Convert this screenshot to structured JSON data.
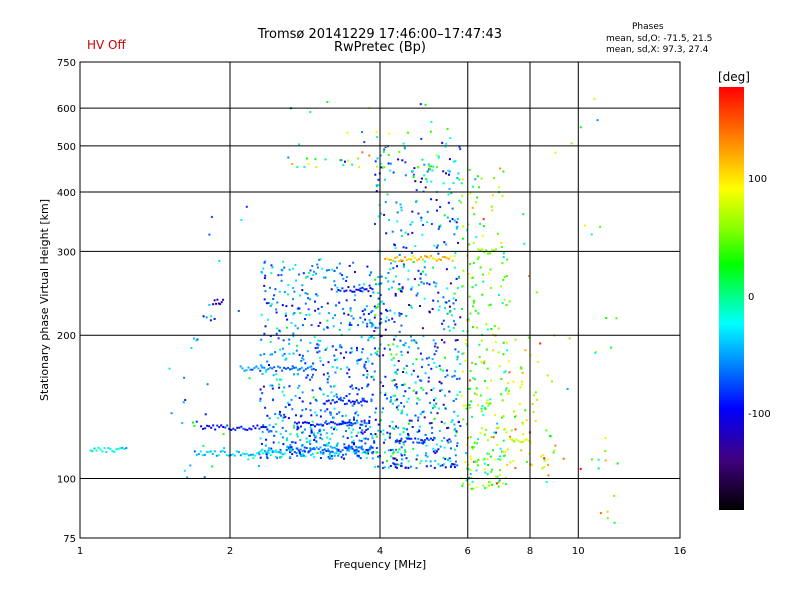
{
  "header": {
    "title_line1": "Tromsø 20141229 17:46:00–17:47:43",
    "title_line2": "RwPretec (Bp)",
    "status": "HV Off",
    "phases_label": "Phases",
    "phases_o": "mean, sd,O: -71.5, 21.5",
    "phases_x": "mean, sd,X: 97.3, 27.4"
  },
  "colorbar": {
    "label": "[deg]",
    "ticks": [
      {
        "value": 100,
        "label": "100"
      },
      {
        "value": 0,
        "label": "0"
      },
      {
        "value": -100,
        "label": "-100"
      }
    ],
    "range": [
      -180,
      180
    ]
  },
  "chart_data": {
    "type": "scatter",
    "xlabel": "Frequency [MHz]",
    "ylabel": "Stationary phase Virtual Height [km]",
    "xscale": "log",
    "yscale": "log",
    "xlim": [
      1,
      16
    ],
    "ylim": [
      75,
      750
    ],
    "xticks": [
      1,
      2,
      4,
      6,
      8,
      10,
      16
    ],
    "yticks": [
      75,
      100,
      200,
      300,
      400,
      500,
      600,
      750
    ],
    "grid_x": [
      2,
      4,
      6,
      8,
      10
    ],
    "grid_y": [
      100,
      200,
      300,
      400,
      500,
      600
    ],
    "color_encoding": "phase [deg]",
    "traces": [
      {
        "f_start": 1.05,
        "f_end": 1.25,
        "h": 115,
        "phase": -30
      },
      {
        "f_start": 1.7,
        "f_end": 2.6,
        "h": 113,
        "phase": -40
      },
      {
        "f_start": 2.6,
        "f_end": 3.9,
        "h": 115,
        "phase": -70
      },
      {
        "f_start": 1.75,
        "f_end": 2.4,
        "h": 128,
        "phase": -95
      },
      {
        "f_start": 2.7,
        "f_end": 3.6,
        "h": 130,
        "phase": -85
      },
      {
        "f_start": 3.1,
        "f_end": 3.8,
        "h": 145,
        "phase": -90
      },
      {
        "f_start": 2.1,
        "f_end": 3.0,
        "h": 170,
        "phase": -60
      },
      {
        "f_start": 3.3,
        "f_end": 3.9,
        "h": 250,
        "phase": -95
      },
      {
        "f_start": 4.1,
        "f_end": 5.7,
        "h": 290,
        "phase": 120
      },
      {
        "f_start": 1.85,
        "f_end": 1.95,
        "h": 235,
        "phase": -110
      },
      {
        "f_start": 6.3,
        "f_end": 6.9,
        "h": 300,
        "phase": 60
      },
      {
        "f_start": 7.3,
        "f_end": 8.1,
        "h": 120,
        "phase": 80
      },
      {
        "f_start": 4.3,
        "f_end": 5.2,
        "h": 120,
        "phase": -80
      }
    ],
    "clusters": [
      {
        "f": [
          2.3,
          3.9
        ],
        "h": [
          110,
          290
        ],
        "n": 700,
        "phase": -60,
        "spread": 45
      },
      {
        "f": [
          3.9,
          5.8
        ],
        "h": [
          105,
          520
        ],
        "n": 650,
        "phase": -55,
        "spread": 70
      },
      {
        "f": [
          5.8,
          7.2
        ],
        "h": [
          95,
          450
        ],
        "n": 260,
        "phase": 40,
        "spread": 90
      },
      {
        "f": [
          7.2,
          9.0
        ],
        "h": [
          105,
          200
        ],
        "n": 60,
        "phase": 90,
        "spread": 60
      },
      {
        "f": [
          2.6,
          5.5
        ],
        "h": [
          450,
          620
        ],
        "n": 50,
        "phase": 20,
        "spread": 100
      },
      {
        "f": [
          1.5,
          2.3
        ],
        "h": [
          100,
          380
        ],
        "n": 40,
        "phase": -50,
        "spread": 50
      },
      {
        "f": [
          7.0,
          12.0
        ],
        "h": [
          80,
          650
        ],
        "n": 45,
        "phase": 60,
        "spread": 110
      }
    ]
  }
}
